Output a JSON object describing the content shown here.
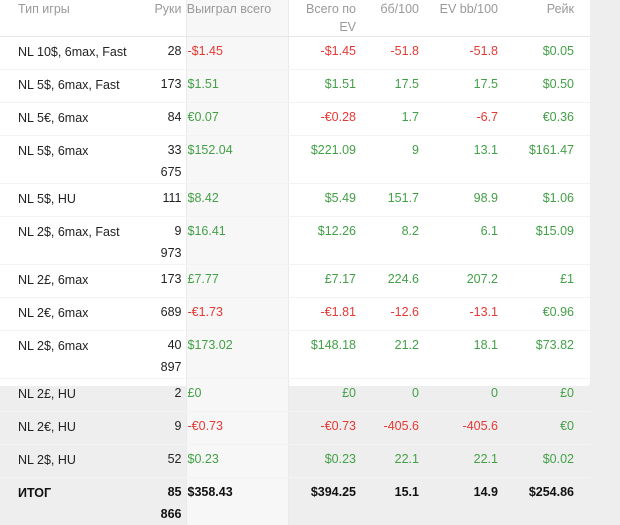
{
  "columns": {
    "name": "Тип игры",
    "hands": "Руки",
    "won": "Выиграл всего",
    "ev": "Всего по EV",
    "bb": "бб/100",
    "evbb": "EV bb/100",
    "rake": "Рейк"
  },
  "colors": {
    "positive": "#43a047",
    "negative": "#e53935"
  },
  "rows": [
    {
      "name": "NL 10$, 6max, Fast",
      "hands": "28",
      "won": "-$1.45",
      "ev": "-$1.45",
      "bb": "-51.8",
      "evbb": "-51.8",
      "rake": "$0.05",
      "won_s": "neg",
      "ev_s": "neg",
      "bb_s": "neg",
      "evbb_s": "neg",
      "rake_s": "pos"
    },
    {
      "name": "NL 5$, 6max, Fast",
      "hands": "173",
      "won": "$1.51",
      "ev": "$1.51",
      "bb": "17.5",
      "evbb": "17.5",
      "rake": "$0.50",
      "won_s": "pos",
      "ev_s": "pos",
      "bb_s": "pos",
      "evbb_s": "pos",
      "rake_s": "pos"
    },
    {
      "name": "NL 5€, 6max",
      "hands": "84",
      "won": "€0.07",
      "ev": "-€0.28",
      "bb": "1.7",
      "evbb": "-6.7",
      "rake": "€0.36",
      "won_s": "pos",
      "ev_s": "neg",
      "bb_s": "pos",
      "evbb_s": "neg",
      "rake_s": "pos"
    },
    {
      "name": "NL 5$, 6max",
      "hands": "33 675",
      "won": "$152.04",
      "ev": "$221.09",
      "bb": "9",
      "evbb": "13.1",
      "rake": "$161.47",
      "won_s": "pos",
      "ev_s": "pos",
      "bb_s": "pos",
      "evbb_s": "pos",
      "rake_s": "pos"
    },
    {
      "name": "NL 5$, HU",
      "hands": "111",
      "won": "$8.42",
      "ev": "$5.49",
      "bb": "151.7",
      "evbb": "98.9",
      "rake": "$1.06",
      "won_s": "pos",
      "ev_s": "pos",
      "bb_s": "pos",
      "evbb_s": "pos",
      "rake_s": "pos"
    },
    {
      "name": "NL 2$, 6max, Fast",
      "hands": "9 973",
      "won": "$16.41",
      "ev": "$12.26",
      "bb": "8.2",
      "evbb": "6.1",
      "rake": "$15.09",
      "won_s": "pos",
      "ev_s": "pos",
      "bb_s": "pos",
      "evbb_s": "pos",
      "rake_s": "pos"
    },
    {
      "name": "NL 2£, 6max",
      "hands": "173",
      "won": "£7.77",
      "ev": "£7.17",
      "bb": "224.6",
      "evbb": "207.2",
      "rake": "£1",
      "won_s": "pos",
      "ev_s": "pos",
      "bb_s": "pos",
      "evbb_s": "pos",
      "rake_s": "pos"
    },
    {
      "name": "NL 2€, 6max",
      "hands": "689",
      "won": "-€1.73",
      "ev": "-€1.81",
      "bb": "-12.6",
      "evbb": "-13.1",
      "rake": "€0.96",
      "won_s": "neg",
      "ev_s": "neg",
      "bb_s": "neg",
      "evbb_s": "neg",
      "rake_s": "pos"
    },
    {
      "name": "NL 2$, 6max",
      "hands": "40 897",
      "won": "$173.02",
      "ev": "$148.18",
      "bb": "21.2",
      "evbb": "18.1",
      "rake": "$73.82",
      "won_s": "pos",
      "ev_s": "pos",
      "bb_s": "pos",
      "evbb_s": "pos",
      "rake_s": "pos"
    },
    {
      "name": "NL 2£, HU",
      "hands": "2",
      "won": "£0",
      "ev": "£0",
      "bb": "0",
      "evbb": "0",
      "rake": "£0",
      "won_s": "pos",
      "ev_s": "pos",
      "bb_s": "pos",
      "evbb_s": "pos",
      "rake_s": "pos"
    },
    {
      "name": "NL 2€, HU",
      "hands": "9",
      "won": "-€0.73",
      "ev": "-€0.73",
      "bb": "-405.6",
      "evbb": "-405.6",
      "rake": "€0",
      "won_s": "neg",
      "ev_s": "neg",
      "bb_s": "neg",
      "evbb_s": "neg",
      "rake_s": "pos"
    },
    {
      "name": "NL 2$, HU",
      "hands": "52",
      "won": "$0.23",
      "ev": "$0.23",
      "bb": "22.1",
      "evbb": "22.1",
      "rake": "$0.02",
      "won_s": "pos",
      "ev_s": "pos",
      "bb_s": "pos",
      "evbb_s": "pos",
      "rake_s": "pos"
    }
  ],
  "total": {
    "name": "ИТОГ",
    "hands": "85 866",
    "won": "$358.43",
    "ev": "$394.25",
    "bb": "15.1",
    "evbb": "14.9",
    "rake": "$254.86",
    "won_s": "pos",
    "ev_s": "pos",
    "bb_s": "pos",
    "evbb_s": "pos",
    "rake_s": "pos"
  }
}
